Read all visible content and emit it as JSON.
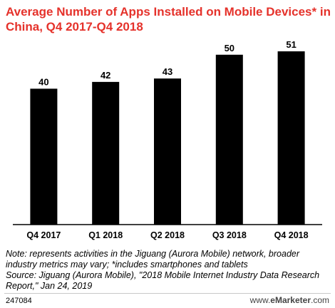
{
  "title": "Average Number of Apps Installed on Mobile Devices* in China, Q4 2017-Q4 2018",
  "chart_data": {
    "type": "bar",
    "categories": [
      "Q4 2017",
      "Q1 2018",
      "Q2 2018",
      "Q3 2018",
      "Q4 2018"
    ],
    "values": [
      40,
      42,
      43,
      50,
      51
    ],
    "title": "Average Number of Apps Installed on Mobile Devices* in China, Q4 2017-Q4 2018",
    "xlabel": "",
    "ylabel": "",
    "ylim": [
      0,
      51
    ],
    "grid": false,
    "data_labels": true,
    "bar_color": "#000000"
  },
  "notes": {
    "note": "Note: represents activities in the Jiguang (Aurora Mobile) network, broader industry metrics may vary; *includes smartphones and tablets",
    "source": "Source: Jiguang (Aurora Mobile), \"2018 Mobile Internet Industry Data Research Report,\" Jan 24, 2019"
  },
  "footer": {
    "code": "247084",
    "logo": "www.eMarketer.com",
    "logo_prefix": "www.",
    "logo_brand": "eMarketer",
    "logo_suffix": ".com"
  },
  "colors": {
    "title": "#e5322b",
    "bars": "#000000",
    "axis": "#000000"
  }
}
